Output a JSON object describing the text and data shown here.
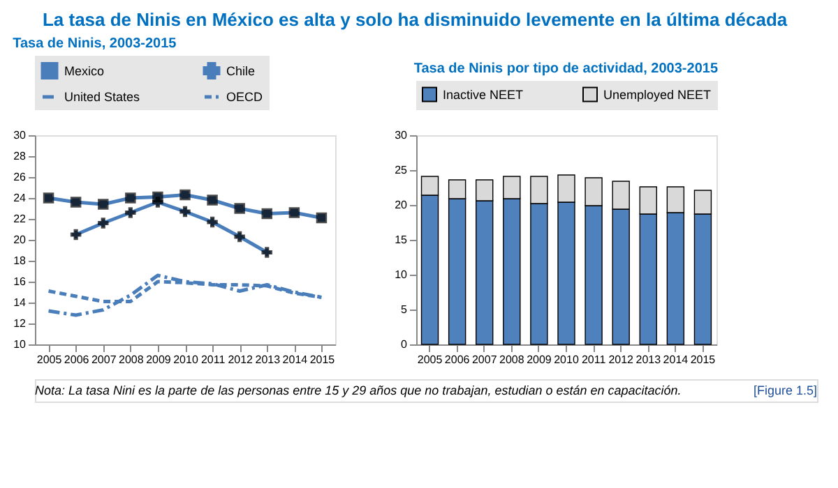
{
  "chart_data": [
    {
      "type": "line",
      "title": "La tasa de Ninis en México es alta y solo ha disminuido levemente en la última década",
      "subtitle": "Tasa de Ninis, 2003-2015",
      "categories": [
        "2005",
        "2006",
        "2007",
        "2008",
        "2009",
        "2010",
        "2011",
        "2012",
        "2013",
        "2014",
        "2015"
      ],
      "series": [
        {
          "name": "Mexico",
          "color": "#4a7ebb",
          "marker": "square",
          "line_style": "solid",
          "values": [
            24.0,
            23.6,
            23.4,
            24.0,
            24.1,
            24.3,
            23.8,
            23.0,
            22.5,
            22.6,
            22.1
          ]
        },
        {
          "name": "Chile",
          "color": "#4a7ebb",
          "marker": "cross",
          "line_style": "solid",
          "values": [
            null,
            20.5,
            21.6,
            22.6,
            23.6,
            22.7,
            21.7,
            20.3,
            18.8,
            null,
            null
          ]
        },
        {
          "name": "United States",
          "color": "#4a7ebb",
          "marker": "none",
          "line_style": "dashdot",
          "values": [
            13.2,
            12.8,
            13.3,
            14.7,
            16.6,
            16.0,
            15.8,
            15.1,
            15.7,
            15.0,
            14.5
          ]
        },
        {
          "name": "OECD",
          "color": "#4a7ebb",
          "marker": "none",
          "line_style": "dashed",
          "values": [
            15.1,
            14.6,
            14.1,
            14.1,
            16.0,
            15.9,
            15.7,
            15.7,
            15.6,
            14.9,
            14.5
          ]
        }
      ],
      "ylim": [
        10,
        30
      ],
      "yticks": [
        10,
        12,
        14,
        16,
        18,
        20,
        22,
        24,
        26,
        28,
        30
      ],
      "grid": false,
      "legend": "top",
      "annotations": [
        "Nota: La tasa Nini es la parte de las personas entre 15 y 29 años que no trabajan, estudian o están en capacitación.",
        "[Figure 1.5]"
      ]
    },
    {
      "type": "bar",
      "stacked": true,
      "subtitle": "Tasa de Ninis por tipo de actividad, 2003-2015",
      "categories": [
        "2005",
        "2006",
        "2007",
        "2008",
        "2009",
        "2010",
        "2011",
        "2012",
        "2013",
        "2014",
        "2015"
      ],
      "series": [
        {
          "name": "Inactive NEET",
          "color": "#4f81bd",
          "values": [
            21.4,
            20.9,
            20.6,
            20.9,
            20.2,
            20.4,
            19.9,
            19.4,
            18.7,
            18.9,
            18.7
          ]
        },
        {
          "name": "Unemployed NEET",
          "color": "#d9d9d9",
          "values": [
            2.7,
            2.7,
            3.0,
            3.2,
            3.9,
            3.9,
            4.0,
            4.0,
            3.9,
            3.7,
            3.4
          ]
        }
      ],
      "ylim": [
        0,
        30
      ],
      "yticks": [
        0,
        5,
        10,
        15,
        20,
        25,
        30
      ],
      "grid": false,
      "legend": "top"
    }
  ]
}
